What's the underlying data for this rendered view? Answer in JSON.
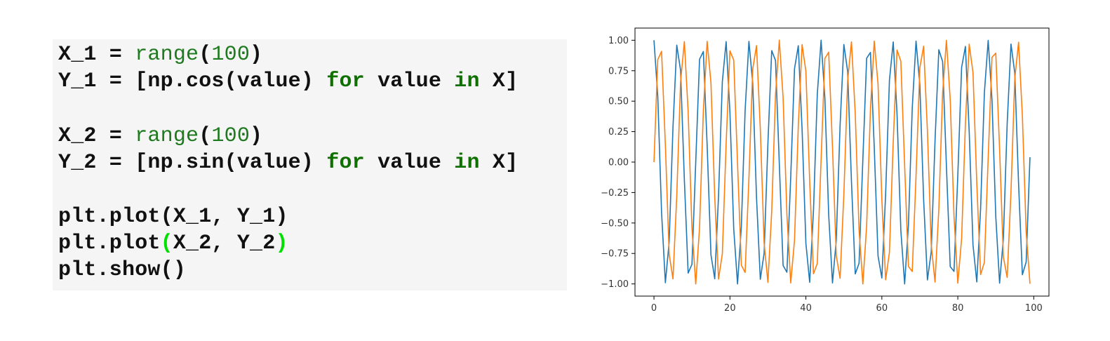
{
  "code_cell": {
    "lines": [
      [
        {
          "t": "X_1 = ",
          "c": "b"
        },
        {
          "t": "range",
          "c": "g"
        },
        {
          "t": "(",
          "c": "b"
        },
        {
          "t": "100",
          "c": "g"
        },
        {
          "t": ")",
          "c": "b"
        }
      ],
      [
        {
          "t": "Y_1 = [np.cos(value) ",
          "c": "b"
        },
        {
          "t": "for",
          "c": "k"
        },
        {
          "t": " value ",
          "c": "b"
        },
        {
          "t": "in",
          "c": "k"
        },
        {
          "t": " X]",
          "c": "b"
        }
      ],
      [],
      [
        {
          "t": "X_2 = ",
          "c": "b"
        },
        {
          "t": "range",
          "c": "g"
        },
        {
          "t": "(",
          "c": "b"
        },
        {
          "t": "100",
          "c": "g"
        },
        {
          "t": ")",
          "c": "b"
        }
      ],
      [
        {
          "t": "Y_2 = [np.sin(value) ",
          "c": "b"
        },
        {
          "t": "for",
          "c": "k"
        },
        {
          "t": " value ",
          "c": "b"
        },
        {
          "t": "in",
          "c": "k"
        },
        {
          "t": " X]",
          "c": "b"
        }
      ],
      [],
      [
        {
          "t": "plt.plot(X_1, Y_1)",
          "c": "b"
        }
      ],
      [
        {
          "t": "plt.plot",
          "c": "b"
        },
        {
          "t": "(",
          "c": "bracket"
        },
        {
          "t": "X_2, Y_2",
          "c": "b"
        },
        {
          "t": ")",
          "c": "bracket"
        }
      ],
      [
        {
          "t": "plt.show()",
          "c": "b"
        }
      ]
    ]
  },
  "chart_data": {
    "type": "line",
    "title": "",
    "xlabel": "",
    "ylabel": "",
    "xlim": [
      -5,
      104
    ],
    "ylim": [
      -1.1,
      1.1
    ],
    "xticks": [
      0,
      20,
      40,
      60,
      80,
      100
    ],
    "yticks": [
      -1.0,
      -0.75,
      -0.5,
      -0.25,
      0.0,
      0.25,
      0.5,
      0.75,
      1.0
    ],
    "ytick_labels": [
      "−1.00",
      "−0.75",
      "−0.50",
      "−0.25",
      "0.00",
      "0.25",
      "0.50",
      "0.75",
      "1.00"
    ],
    "grid": false,
    "legend": "none",
    "series": [
      {
        "color": "#1f77b4",
        "x": [
          0,
          1,
          2,
          3,
          4,
          5,
          6,
          7,
          8,
          9,
          10,
          11,
          12,
          13,
          14,
          15,
          16,
          17,
          18,
          19,
          20,
          21,
          22,
          23,
          24,
          25,
          26,
          27,
          28,
          29,
          30,
          31,
          32,
          33,
          34,
          35,
          36,
          37,
          38,
          39,
          40,
          41,
          42,
          43,
          44,
          45,
          46,
          47,
          48,
          49,
          50,
          51,
          52,
          53,
          54,
          55,
          56,
          57,
          58,
          59,
          60,
          61,
          62,
          63,
          64,
          65,
          66,
          67,
          68,
          69,
          70,
          71,
          72,
          73,
          74,
          75,
          76,
          77,
          78,
          79,
          80,
          81,
          82,
          83,
          84,
          85,
          86,
          87,
          88,
          89,
          90,
          91,
          92,
          93,
          94,
          95,
          96,
          97,
          98,
          99
        ],
        "y": [
          1.0,
          0.54,
          -0.416,
          -0.99,
          -0.654,
          0.284,
          0.96,
          0.754,
          -0.146,
          -0.911,
          -0.839,
          0.004,
          0.844,
          0.907,
          0.137,
          -0.76,
          -0.958,
          -0.275,
          0.66,
          0.989,
          0.408,
          -0.548,
          -1.0,
          -0.533,
          0.424,
          0.991,
          0.647,
          -0.292,
          -0.962,
          -0.748,
          0.154,
          0.915,
          0.834,
          -0.013,
          -0.849,
          -0.904,
          -0.128,
          0.765,
          0.955,
          0.267,
          -0.667,
          -0.987,
          -0.4,
          0.556,
          1.0,
          0.525,
          -0.432,
          -0.992,
          -0.64,
          0.3,
          0.965,
          0.743,
          -0.162,
          -0.918,
          -0.83,
          0.022,
          0.853,
          0.9,
          0.12,
          -0.771,
          -0.952,
          -0.258,
          0.673,
          0.986,
          0.392,
          -0.562,
          -1.0,
          -0.517,
          0.44,
          0.993,
          0.634,
          -0.309,
          -0.967,
          -0.737,
          0.171,
          0.922,
          0.825,
          -0.031,
          -0.858,
          -0.897,
          -0.11,
          0.776,
          0.949,
          0.25,
          -0.68,
          -0.984,
          -0.384,
          0.57,
          0.999,
          0.51,
          -0.448,
          -0.994,
          -0.627,
          0.317,
          0.969,
          0.731,
          -0.179,
          -0.925,
          -0.82,
          0.04
        ]
      },
      {
        "color": "#ff7f0e",
        "x": [
          0,
          1,
          2,
          3,
          4,
          5,
          6,
          7,
          8,
          9,
          10,
          11,
          12,
          13,
          14,
          15,
          16,
          17,
          18,
          19,
          20,
          21,
          22,
          23,
          24,
          25,
          26,
          27,
          28,
          29,
          30,
          31,
          32,
          33,
          34,
          35,
          36,
          37,
          38,
          39,
          40,
          41,
          42,
          43,
          44,
          45,
          46,
          47,
          48,
          49,
          50,
          51,
          52,
          53,
          54,
          55,
          56,
          57,
          58,
          59,
          60,
          61,
          62,
          63,
          64,
          65,
          66,
          67,
          68,
          69,
          70,
          71,
          72,
          73,
          74,
          75,
          76,
          77,
          78,
          79,
          80,
          81,
          82,
          83,
          84,
          85,
          86,
          87,
          88,
          89,
          90,
          91,
          92,
          93,
          94,
          95,
          96,
          97,
          98,
          99
        ],
        "y": [
          0.0,
          0.841,
          0.909,
          0.141,
          -0.757,
          -0.959,
          -0.279,
          0.657,
          0.989,
          0.412,
          -0.544,
          -1.0,
          -0.537,
          0.42,
          0.991,
          0.65,
          -0.288,
          -0.961,
          -0.751,
          0.15,
          0.913,
          0.837,
          -0.009,
          -0.846,
          -0.906,
          -0.132,
          0.763,
          0.956,
          0.271,
          -0.664,
          -0.988,
          -0.404,
          0.551,
          1.0,
          0.529,
          -0.428,
          -0.992,
          -0.644,
          0.296,
          0.964,
          0.745,
          -0.158,
          -0.917,
          -0.832,
          0.018,
          0.851,
          0.902,
          0.124,
          -0.768,
          -0.954,
          -0.262,
          0.67,
          0.987,
          0.396,
          -0.559,
          -1.0,
          -0.521,
          0.436,
          0.993,
          0.637,
          -0.305,
          -0.966,
          -0.74,
          0.167,
          0.92,
          0.827,
          -0.027,
          -0.856,
          -0.898,
          -0.115,
          0.774,
          0.951,
          0.254,
          -0.677,
          -0.985,
          -0.388,
          0.566,
          0.999,
          0.514,
          -0.444,
          -0.994,
          -0.63,
          0.313,
          0.968,
          0.734,
          -0.176,
          -0.924,
          -0.822,
          0.035,
          0.86,
          0.894,
          0.106,
          -0.779,
          -0.947,
          -0.245,
          0.683,
          0.984,
          0.38,
          -0.573,
          -0.999
        ]
      }
    ]
  }
}
